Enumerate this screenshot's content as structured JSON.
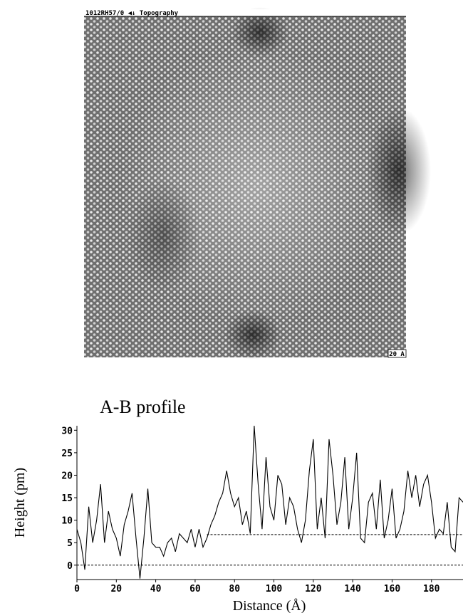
{
  "image": {
    "header": "1012RH57/0 ◀↓ Topography",
    "scale_label": "20 A"
  },
  "chart_data": {
    "type": "line",
    "title": "A-B profile",
    "xlabel": "Distance (Å)",
    "ylabel": "Height (pm)",
    "x": [
      0,
      2,
      4,
      6,
      8,
      10,
      12,
      14,
      16,
      18,
      20,
      22,
      24,
      26,
      28,
      30,
      32,
      34,
      36,
      38,
      40,
      42,
      44,
      46,
      48,
      50,
      52,
      54,
      56,
      58,
      60,
      62,
      64,
      66,
      68,
      70,
      72,
      74,
      76,
      78,
      80,
      82,
      84,
      86,
      88,
      90,
      92,
      94,
      96,
      98,
      100,
      102,
      104,
      106,
      108,
      110,
      112,
      114,
      116,
      118,
      120,
      122,
      124,
      126,
      128,
      130,
      132,
      134,
      136,
      138,
      140,
      142,
      144,
      146,
      148,
      150,
      152,
      154,
      156,
      158,
      160,
      162,
      164,
      166,
      168,
      170,
      172,
      174,
      176,
      178,
      180,
      182,
      184,
      186,
      188,
      190,
      192,
      194,
      196
    ],
    "series": [
      {
        "color": "#000000",
        "values": [
          8,
          5,
          -1,
          13,
          5,
          10,
          18,
          5,
          12,
          8,
          6,
          2,
          9,
          12,
          16,
          6,
          -3,
          6,
          17,
          5,
          4,
          4,
          2,
          5,
          6,
          3,
          7,
          6,
          5,
          8,
          4,
          8,
          4,
          6,
          9,
          11,
          14,
          16,
          21,
          16,
          13,
          15,
          9,
          12,
          7,
          31,
          18,
          8,
          24,
          13,
          10,
          20,
          18,
          9,
          15,
          13,
          8,
          5,
          10,
          21,
          28,
          8,
          15,
          6,
          28,
          20,
          9,
          14,
          24,
          8,
          15,
          25,
          6,
          5,
          14,
          16,
          8,
          19,
          6,
          10,
          17,
          6,
          8,
          12,
          21,
          15,
          20,
          13,
          18,
          20,
          14,
          6,
          8,
          7,
          14,
          4,
          3,
          15,
          14
        ]
      }
    ],
    "reference_lines": [
      {
        "y": 0,
        "x": [
          0,
          196
        ]
      },
      {
        "y": 6.8,
        "x": [
          66,
          196
        ]
      }
    ],
    "xlim": [
      0,
      196
    ],
    "xticks": [
      0,
      20,
      40,
      60,
      80,
      100,
      120,
      140,
      160,
      180
    ],
    "ylim": [
      -3.2,
      31
    ],
    "yticks": [
      0,
      5,
      10,
      15,
      20,
      25,
      30
    ]
  }
}
